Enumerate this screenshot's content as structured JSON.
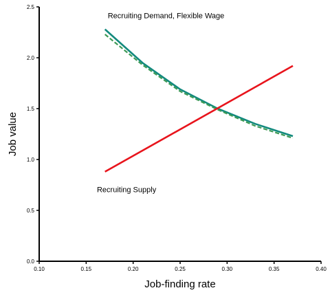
{
  "chart_data": {
    "type": "line",
    "title": "",
    "xlabel": "Job-finding rate",
    "ylabel": "Job value",
    "xlim": [
      0.1,
      0.4
    ],
    "ylim": [
      0.0,
      2.5
    ],
    "x_ticks": [
      "0.10",
      "0.15",
      "0.20",
      "0.25",
      "0.30",
      "0.35",
      "0.40"
    ],
    "y_ticks": [
      "0.0",
      "0.5",
      "1.0",
      "1.5",
      "2.0",
      "2.5"
    ],
    "grid": false,
    "legend": "none",
    "series": [
      {
        "style": "solid",
        "color": "#138a7e",
        "x": [
          0.17,
          0.21,
          0.25,
          0.29,
          0.33,
          0.37
        ],
        "y": [
          2.28,
          1.95,
          1.69,
          1.5,
          1.35,
          1.23
        ]
      },
      {
        "style": "dashed",
        "color": "#3d9a55",
        "x": [
          0.17,
          0.21,
          0.25,
          0.29,
          0.33,
          0.37
        ],
        "y": [
          2.23,
          1.93,
          1.67,
          1.49,
          1.33,
          1.21
        ]
      },
      {
        "style": "solid",
        "color": "#e8141c",
        "x": [
          0.17,
          0.37
        ],
        "y": [
          0.88,
          1.92
        ]
      }
    ],
    "annotations": [
      {
        "text": "Recruiting Demand, Flexible Wage",
        "x": 0.235,
        "y": 2.39
      },
      {
        "text": "Recruiting Supply",
        "x": 0.193,
        "y": 0.68
      }
    ]
  }
}
